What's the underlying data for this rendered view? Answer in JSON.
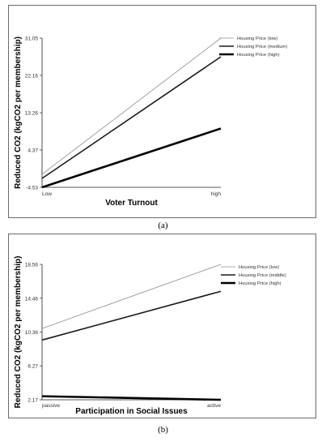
{
  "chart_data": [
    {
      "panel": "a",
      "type": "line",
      "caption": "(a)",
      "xlabel": "Voter Turnout",
      "ylabel": "Reduced CO2 (kgCO2 per membership)",
      "categories": [
        "Low",
        "high"
      ],
      "yticks": [
        "31.05",
        "22.16",
        "13.26",
        "4.37",
        "-4.53"
      ],
      "ylim": [
        -4.53,
        31.05
      ],
      "grid": false,
      "legend_position": "top-right",
      "series": [
        {
          "name": "Housing Price (low)",
          "values": [
            -1.4,
            31.05
          ],
          "color": "#8c8c8c",
          "width": 0.8
        },
        {
          "name": "Housing Price (medium)",
          "values": [
            -2.4,
            26.6
          ],
          "color": "#1a1a1a",
          "width": 1.6
        },
        {
          "name": "Housing Price (high)",
          "values": [
            -4.53,
            9.5
          ],
          "color": "#000000",
          "width": 2.6
        }
      ]
    },
    {
      "panel": "b",
      "type": "line",
      "caption": "(b)",
      "xlabel": "Participation in Social Issues",
      "ylabel": "Reduced CO2 (kgCO2 per membership)",
      "categories": [
        "passive",
        "active"
      ],
      "yticks": [
        "18.56",
        "14.46",
        "10.36",
        "6.27",
        "2.17"
      ],
      "ylim": [
        2.17,
        18.56
      ],
      "grid": false,
      "legend_position": "top-right",
      "series": [
        {
          "name": "Housing Price (low)",
          "values": [
            10.8,
            18.56
          ],
          "color": "#8c8c8c",
          "width": 0.8
        },
        {
          "name": "Housing Price (middle)",
          "values": [
            9.4,
            15.3
          ],
          "color": "#1a1a1a",
          "width": 1.6
        },
        {
          "name": "Housing Price (high)",
          "values": [
            2.6,
            2.17
          ],
          "color": "#000000",
          "width": 2.6
        }
      ]
    }
  ]
}
